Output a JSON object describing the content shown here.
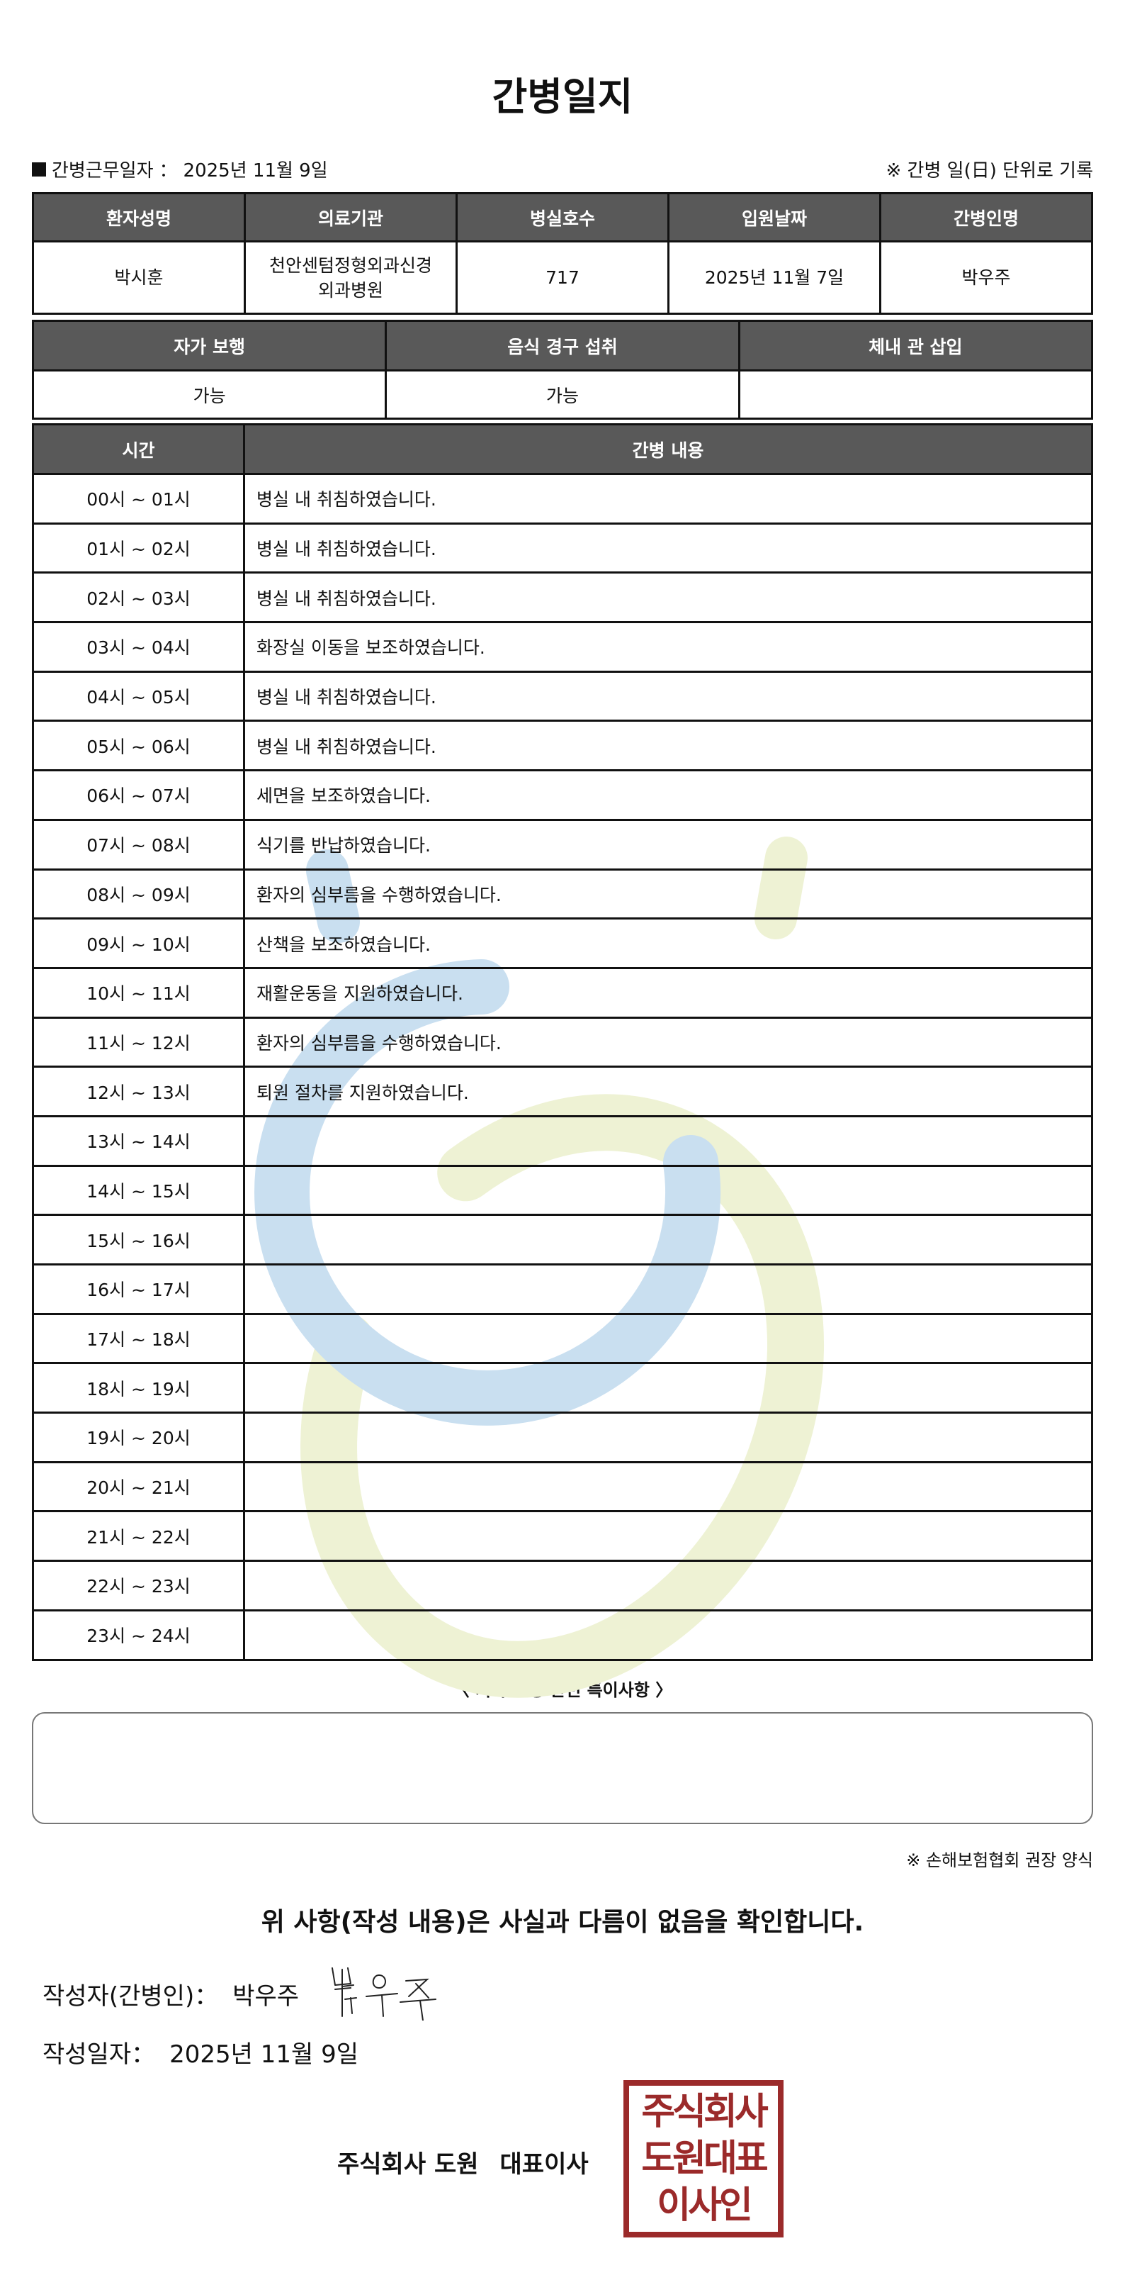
{
  "title": "간병일지",
  "info": {
    "work_date_label": "간병근무일자",
    "separator": "：",
    "work_date": "2025년 11월 9일",
    "note": "※ 간병 일(日) 단위로 기록"
  },
  "patient_table": {
    "headers": [
      "환자성명",
      "의료기관",
      "병실호수",
      "입원날짜",
      "간병인명"
    ],
    "values": [
      "박시훈",
      "천안센텀정형외과신경외과병원",
      "717",
      "2025년 11월 7일",
      "박우주"
    ]
  },
  "status_table": {
    "headers": [
      "자가 보행",
      "음식 경구 섭취",
      "체내 관 삽입"
    ],
    "values": [
      "가능",
      "가능",
      ""
    ]
  },
  "log_table": {
    "headers": [
      "시간",
      "간병 내용"
    ],
    "rows": [
      {
        "time": "00시 ~ 01시",
        "content": "병실 내 취침하였습니다."
      },
      {
        "time": "01시 ~ 02시",
        "content": "병실 내 취침하였습니다."
      },
      {
        "time": "02시 ~ 03시",
        "content": "병실 내 취침하였습니다."
      },
      {
        "time": "03시 ~ 04시",
        "content": "화장실 이동을 보조하였습니다."
      },
      {
        "time": "04시 ~ 05시",
        "content": "병실 내 취침하였습니다."
      },
      {
        "time": "05시 ~ 06시",
        "content": "병실 내 취침하였습니다."
      },
      {
        "time": "06시 ~ 07시",
        "content": "세면을 보조하였습니다."
      },
      {
        "time": "07시 ~ 08시",
        "content": "식기를 반납하였습니다."
      },
      {
        "time": "08시 ~ 09시",
        "content": "환자의 심부름을 수행하였습니다."
      },
      {
        "time": "09시 ~ 10시",
        "content": "산책을 보조하였습니다."
      },
      {
        "time": "10시 ~ 11시",
        "content": "재활운동을 지원하였습니다."
      },
      {
        "time": "11시 ~ 12시",
        "content": "환자의 심부름을 수행하였습니다."
      },
      {
        "time": "12시 ~ 13시",
        "content": "퇴원 절차를 지원하였습니다."
      },
      {
        "time": "13시 ~ 14시",
        "content": ""
      },
      {
        "time": "14시 ~ 15시",
        "content": ""
      },
      {
        "time": "15시 ~ 16시",
        "content": ""
      },
      {
        "time": "16시 ~ 17시",
        "content": ""
      },
      {
        "time": "17시 ~ 18시",
        "content": ""
      },
      {
        "time": "18시 ~ 19시",
        "content": ""
      },
      {
        "time": "19시 ~ 20시",
        "content": ""
      },
      {
        "time": "20시 ~ 21시",
        "content": ""
      },
      {
        "time": "21시 ~ 22시",
        "content": ""
      },
      {
        "time": "22시 ~ 23시",
        "content": ""
      },
      {
        "time": "23시 ~ 24시",
        "content": ""
      }
    ]
  },
  "notes": {
    "label": "〈 기타 간병 관련 특이사항 〉",
    "value": ""
  },
  "source_note": "※ 손해보험협회 권장 양식",
  "confirm_text": "위 사항(작성 내용)은 사실과 다름이 없음을 확인합니다.",
  "writer": {
    "label": "작성자(간병인)：",
    "name": "박우주",
    "signature_text": "박우주"
  },
  "written_date": {
    "label": "작성일자：",
    "value": "2025년 11월 9일"
  },
  "company": {
    "name": "주식회사 도원",
    "title": "대표이사"
  },
  "seal": {
    "lines": [
      "주식회사",
      "도원대표",
      "이사인"
    ],
    "color": "#9b2a2a"
  },
  "colors": {
    "header_bg": "#595959",
    "watermark_blue": "#c9dff0",
    "watermark_green": "#eef2d4"
  }
}
